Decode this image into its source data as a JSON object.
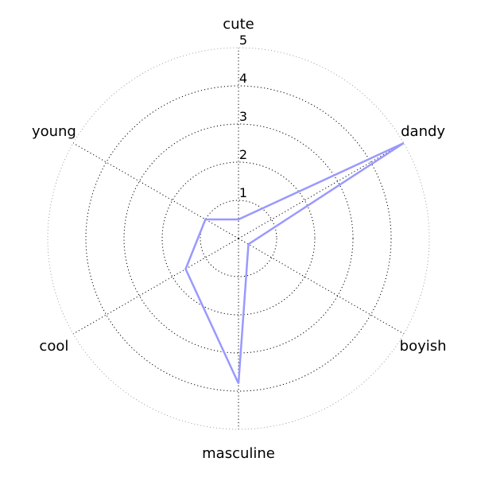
{
  "chart_data": {
    "type": "radar",
    "categories": [
      "cute",
      "dandy",
      "boyish",
      "masculine",
      "cool",
      "young"
    ],
    "rticks": [
      "1",
      "2",
      "3",
      "4",
      "5"
    ],
    "rlim": [
      0,
      5
    ],
    "grid": true,
    "series": [
      {
        "values": [
          0.5,
          5.0,
          0.3,
          3.8,
          1.6,
          1.0
        ],
        "color": "#9999ff"
      }
    ]
  }
}
